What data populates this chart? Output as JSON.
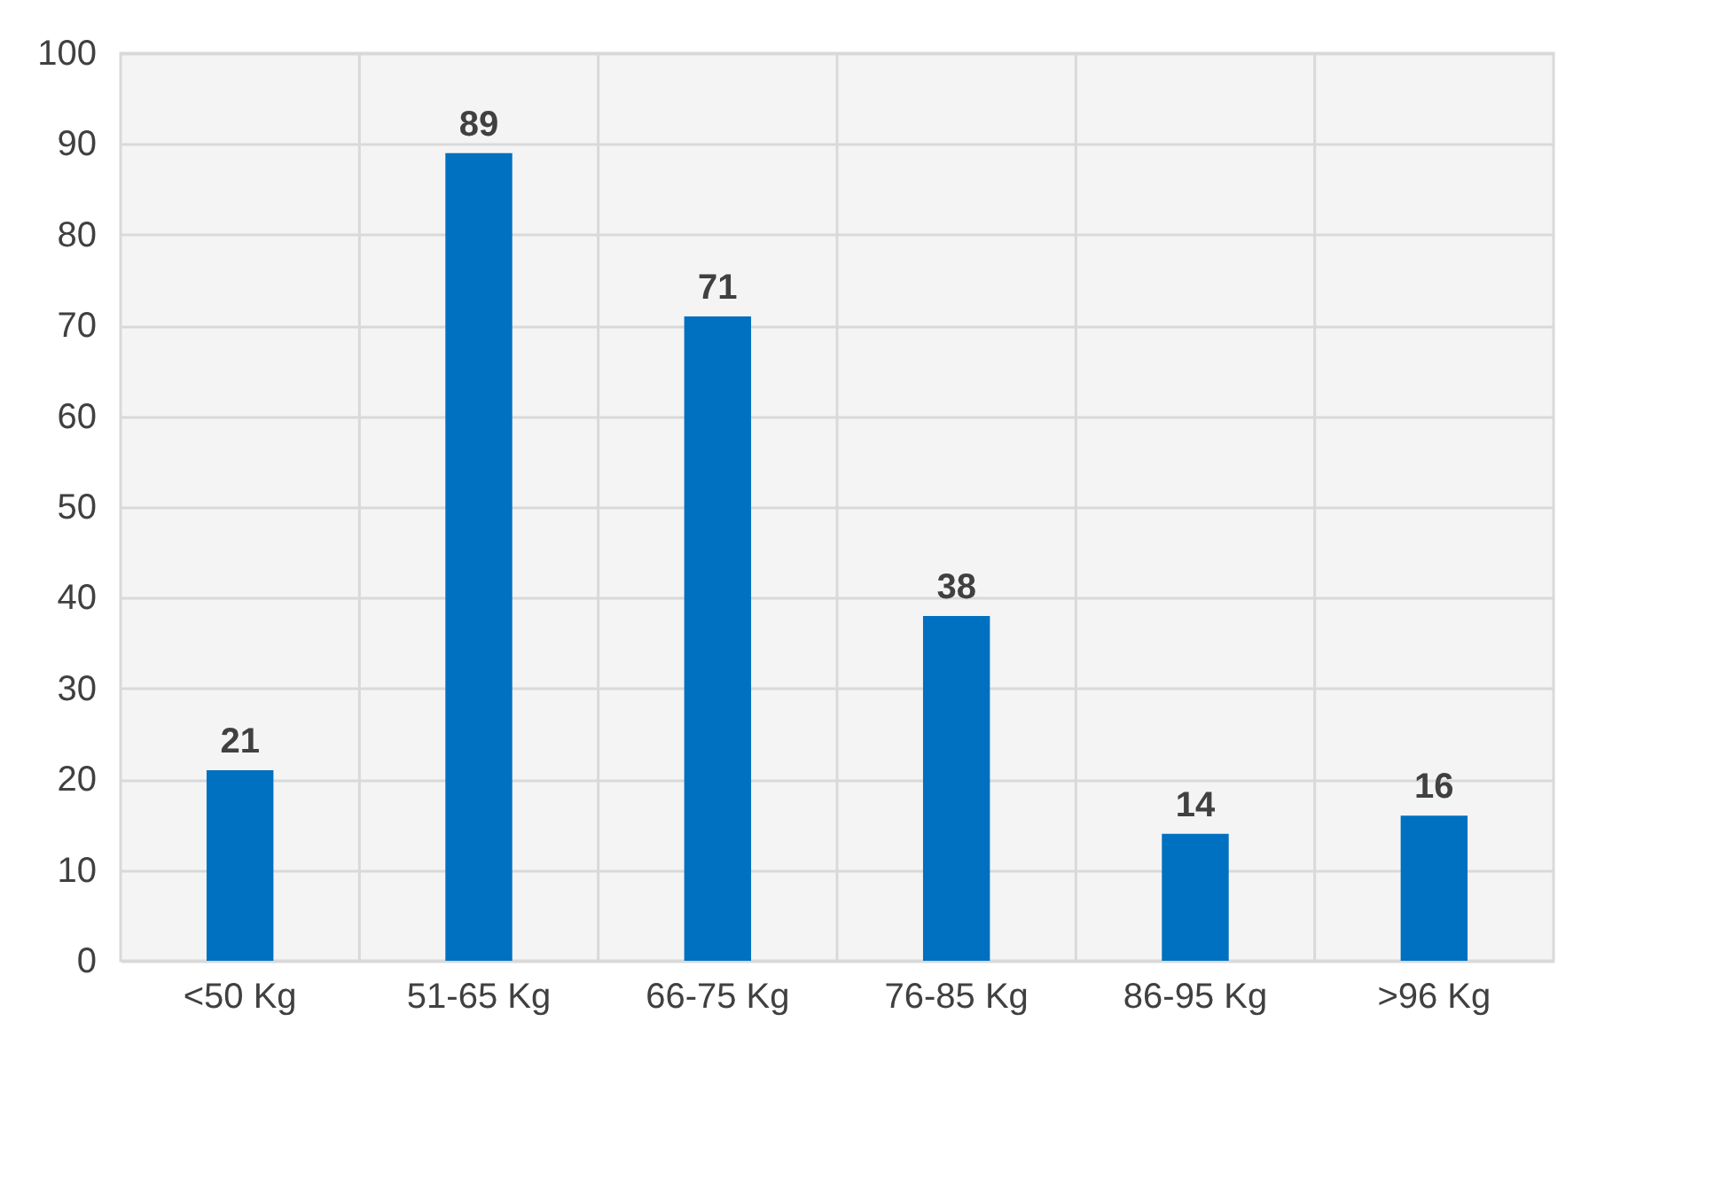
{
  "chart_data": {
    "type": "bar",
    "categories": [
      "<50 Kg",
      "51-65 Kg",
      "66-75 Kg",
      "76-85 Kg",
      "86-95 Kg",
      ">96 Kg"
    ],
    "values": [
      21,
      89,
      71,
      38,
      14,
      16
    ],
    "color": "#0070c0",
    "ylim": [
      0,
      100
    ],
    "yticks": [
      0,
      10,
      20,
      30,
      40,
      50,
      60,
      70,
      80,
      90,
      100
    ],
    "grid": true,
    "data_labels": true
  }
}
